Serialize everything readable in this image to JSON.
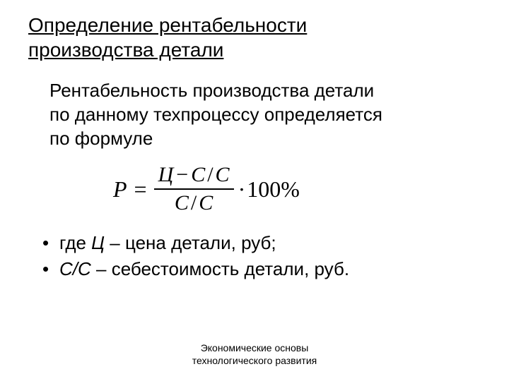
{
  "title_line1": "Определение рентабельности",
  "title_line2": "производства детали",
  "intro_line1": "Рентабельность производства детали",
  "intro_line2": "по данному техпроцессу определяется",
  "intro_line3": "по формуле",
  "formula": {
    "lhs": "P",
    "equals": "=",
    "numerator_c": "Ц",
    "numerator_minus": "−",
    "numerator_s1": "С",
    "numerator_slash": "/",
    "numerator_s2": "С",
    "denominator_s1": "С",
    "denominator_slash": "/",
    "denominator_s2": "С",
    "dot": "·",
    "hundred": "100",
    "percent": "%"
  },
  "bullet1_prefix": "где ",
  "bullet1_var": "Ц",
  "bullet1_text": " – цена детали, руб;",
  "bullet2_var": "С/С",
  "bullet2_text": " – себестоимость детали, руб.",
  "bullet_marker": "•",
  "footer_line1": "Экономические основы",
  "footer_line2": "технологического развития",
  "colors": {
    "background": "#ffffff",
    "text": "#000000"
  },
  "typography": {
    "body_family": "Arial",
    "formula_family": "Times New Roman",
    "title_fontsize": 28,
    "intro_fontsize": 26,
    "formula_fontsize": 32,
    "bullets_fontsize": 26,
    "footer_fontsize": 14
  }
}
